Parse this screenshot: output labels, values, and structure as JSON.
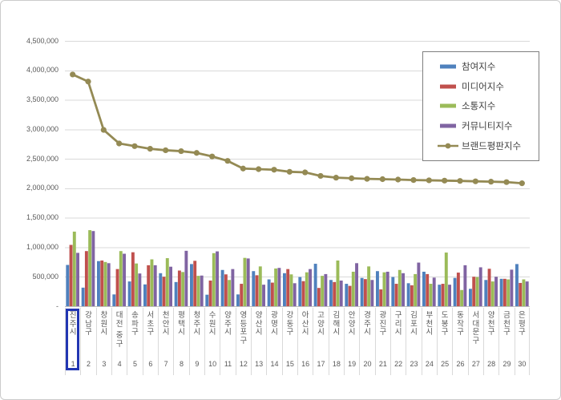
{
  "chart_data": {
    "type": "bar",
    "title": "",
    "xlabel": "",
    "ylabel": "",
    "grid": true,
    "categories": [
      "진주시",
      "강남구",
      "창원시",
      "대전 중구",
      "송파구",
      "서초구",
      "천안시",
      "평택시",
      "청주시",
      "수원시",
      "양주시",
      "영등포구",
      "양산시",
      "광명시",
      "강동구",
      "아산시",
      "고양시",
      "김해시",
      "안양시",
      "경주시",
      "광진구",
      "구리시",
      "김포시",
      "부천시",
      "도봉구",
      "동작구",
      "서대문구",
      "양천구",
      "금천구",
      "은평구"
    ],
    "ranks": [
      "1",
      "2",
      "3",
      "4",
      "5",
      "6",
      "7",
      "8",
      "9",
      "10",
      "11",
      "12",
      "13",
      "14",
      "15",
      "16",
      "17",
      "18",
      "19",
      "20",
      "21",
      "22",
      "23",
      "24",
      "25",
      "26",
      "27",
      "28",
      "29",
      "30"
    ],
    "series": [
      {
        "name": "참여지수",
        "type": "bar",
        "color": "#4F81BD",
        "values": [
          700000,
          315000,
          765000,
          200000,
          420000,
          370000,
          560000,
          410000,
          715000,
          195000,
          615000,
          200000,
          595000,
          455000,
          560000,
          495000,
          720000,
          445000,
          380000,
          480000,
          595000,
          495000,
          390000,
          585000,
          365000,
          480000,
          295000,
          445000,
          465000,
          715000
        ]
      },
      {
        "name": "미디어지수",
        "type": "bar",
        "color": "#C0504D",
        "values": [
          1040000,
          935000,
          775000,
          630000,
          915000,
          695000,
          500000,
          605000,
          770000,
          435000,
          540000,
          380000,
          525000,
          400000,
          630000,
          425000,
          310000,
          410000,
          345000,
          460000,
          285000,
          380000,
          355000,
          545000,
          380000,
          570000,
          500000,
          635000,
          465000,
          395000
        ]
      },
      {
        "name": "소통지수",
        "type": "bar",
        "color": "#9BBB59",
        "values": [
          1265000,
          1290000,
          750000,
          935000,
          725000,
          795000,
          815000,
          580000,
          515000,
          900000,
          445000,
          820000,
          675000,
          640000,
          540000,
          575000,
          515000,
          775000,
          585000,
          675000,
          575000,
          615000,
          545000,
          380000,
          910000,
          275000,
          495000,
          420000,
          455000,
          455000
        ]
      },
      {
        "name": "커뮤니티지수",
        "type": "bar",
        "color": "#8064A2",
        "values": [
          905000,
          1275000,
          730000,
          890000,
          555000,
          695000,
          670000,
          940000,
          520000,
          930000,
          630000,
          810000,
          365000,
          650000,
          390000,
          630000,
          545000,
          435000,
          730000,
          445000,
          585000,
          560000,
          740000,
          485000,
          365000,
          695000,
          660000,
          500000,
          620000,
          420000
        ]
      },
      {
        "name": "브랜드평판지수",
        "type": "line",
        "color": "#948A54",
        "values": [
          3930000,
          3810000,
          2990000,
          2760000,
          2715000,
          2670000,
          2645000,
          2630000,
          2600000,
          2540000,
          2465000,
          2335000,
          2325000,
          2315000,
          2280000,
          2270000,
          2210000,
          2180000,
          2170000,
          2160000,
          2155000,
          2148000,
          2140000,
          2135000,
          2130000,
          2125000,
          2118000,
          2112000,
          2105000,
          2085000
        ]
      }
    ],
    "y_axis": {
      "min": 0,
      "max": 4500000,
      "step": 500000,
      "tick_labels_top_to_bottom": [
        "4,500,000",
        "4,000,000",
        "3,500,000",
        "3,000,000",
        "2,500,000",
        "2,000,000",
        "1,500,000",
        "1,000,000",
        "500,000",
        "-"
      ]
    },
    "legend": {
      "position": "top-right"
    },
    "highlight": {
      "rank": "1",
      "category": "진주시",
      "box_color": "#2236B2"
    }
  },
  "colors": {
    "gridline": "#D9D9D9",
    "axis_line": "#BFBFBF",
    "label_text": "#595959",
    "legend_border": "#7F7F7F",
    "highlight_blue": "#2236B2"
  }
}
